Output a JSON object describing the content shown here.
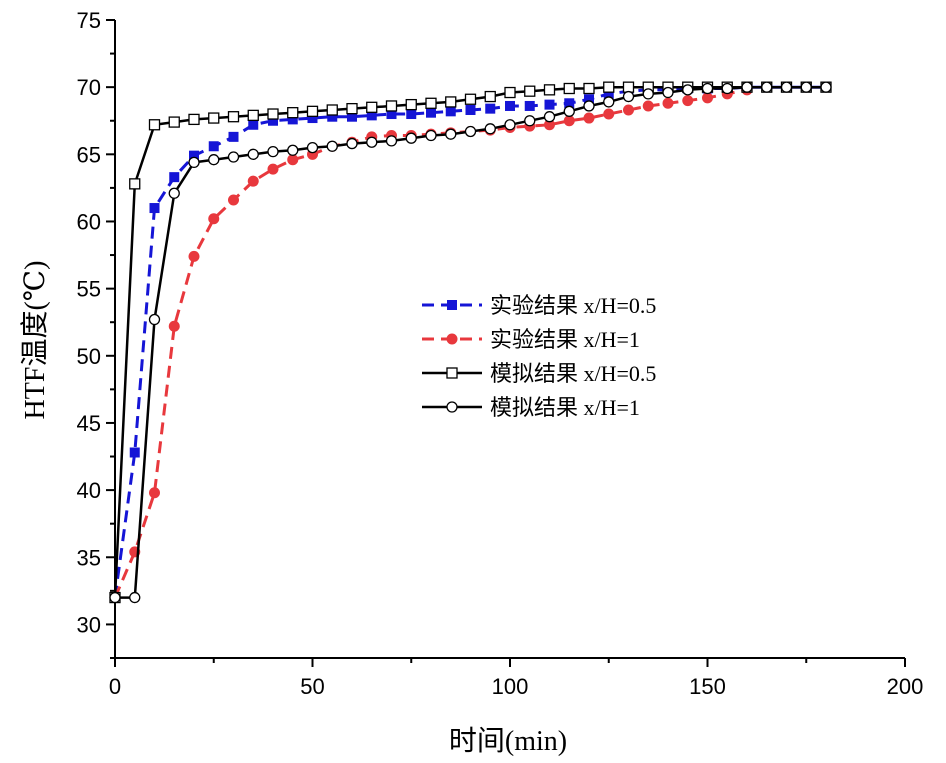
{
  "chart_data": {
    "type": "line",
    "title": "",
    "xlabel": "时间(min)",
    "ylabel": "HTF温度(℃)",
    "xlim": [
      0,
      200
    ],
    "ylim": [
      27.5,
      75
    ],
    "x_ticks": [
      "0",
      "50",
      "100",
      "150",
      "200"
    ],
    "y_ticks": [
      "30",
      "35",
      "40",
      "45",
      "50",
      "55",
      "60",
      "65",
      "70",
      "75"
    ],
    "grid": false,
    "legend_position": "center-right",
    "series": [
      {
        "name": "实验结果 x/H=0.5",
        "style": "dashed",
        "marker": "filled-square",
        "color": "#1515d6",
        "x": [
          0,
          5,
          10,
          15,
          20,
          25,
          30,
          35,
          40,
          45,
          50,
          55,
          60,
          65,
          70,
          75,
          80,
          85,
          90,
          95,
          100,
          105,
          110,
          115,
          120,
          125,
          130,
          135,
          140,
          145,
          150,
          155,
          160,
          165,
          170,
          175,
          180
        ],
        "y": [
          32.0,
          42.8,
          61.0,
          63.3,
          64.9,
          65.6,
          66.3,
          67.2,
          67.5,
          67.6,
          67.7,
          67.8,
          67.8,
          67.9,
          68.0,
          68.0,
          68.1,
          68.2,
          68.3,
          68.4,
          68.6,
          68.6,
          68.7,
          68.8,
          69.1,
          69.5,
          69.7,
          69.8,
          69.8,
          69.9,
          69.9,
          69.9,
          70.0,
          70.0,
          70.0,
          70.0,
          70.0
        ]
      },
      {
        "name": "实验结果 x/H=1",
        "style": "dashed",
        "marker": "filled-circle",
        "color": "#e8383d",
        "x": [
          0,
          5,
          10,
          15,
          20,
          25,
          30,
          35,
          40,
          45,
          50,
          55,
          60,
          65,
          70,
          75,
          80,
          85,
          90,
          95,
          100,
          105,
          110,
          115,
          120,
          125,
          130,
          135,
          140,
          145,
          150,
          155,
          160
        ],
        "y": [
          32.0,
          35.4,
          39.8,
          52.2,
          57.4,
          60.2,
          61.6,
          63.0,
          63.9,
          64.6,
          65.0,
          65.6,
          65.9,
          66.3,
          66.4,
          66.4,
          66.5,
          66.6,
          66.7,
          66.8,
          67.0,
          67.1,
          67.2,
          67.5,
          67.7,
          68.0,
          68.3,
          68.6,
          68.8,
          69.0,
          69.2,
          69.5,
          69.8
        ]
      },
      {
        "name": "模拟结果 x/H=0.5",
        "style": "solid",
        "marker": "open-square",
        "color": "#000000",
        "x": [
          0,
          5,
          10,
          15,
          20,
          25,
          30,
          35,
          40,
          45,
          50,
          55,
          60,
          65,
          70,
          75,
          80,
          85,
          90,
          95,
          100,
          105,
          110,
          115,
          120,
          125,
          130,
          135,
          140,
          145,
          150,
          155,
          160,
          165,
          170,
          175,
          180
        ],
        "y": [
          32.0,
          62.8,
          67.2,
          67.4,
          67.6,
          67.7,
          67.8,
          67.9,
          68.0,
          68.1,
          68.2,
          68.3,
          68.4,
          68.5,
          68.6,
          68.7,
          68.8,
          68.9,
          69.1,
          69.3,
          69.6,
          69.7,
          69.8,
          69.9,
          69.9,
          70.0,
          70.0,
          70.0,
          70.0,
          70.0,
          70.0,
          70.0,
          70.0,
          70.0,
          70.0,
          70.0,
          70.0
        ]
      },
      {
        "name": "模拟结果 x/H=1",
        "style": "solid",
        "marker": "open-circle",
        "color": "#000000",
        "x": [
          0,
          5,
          10,
          15,
          20,
          25,
          30,
          35,
          40,
          45,
          50,
          55,
          60,
          65,
          70,
          75,
          80,
          85,
          90,
          95,
          100,
          105,
          110,
          115,
          120,
          125,
          130,
          135,
          140,
          145,
          150,
          155,
          160,
          165,
          170,
          175,
          180
        ],
        "y": [
          32.0,
          32.0,
          52.7,
          62.1,
          64.4,
          64.6,
          64.8,
          65.0,
          65.2,
          65.3,
          65.5,
          65.6,
          65.8,
          65.9,
          66.0,
          66.2,
          66.4,
          66.5,
          66.7,
          66.9,
          67.2,
          67.5,
          67.8,
          68.2,
          68.6,
          68.9,
          69.3,
          69.5,
          69.6,
          69.8,
          69.9,
          69.9,
          70.0,
          70.0,
          70.0,
          70.0,
          70.0
        ]
      }
    ]
  }
}
